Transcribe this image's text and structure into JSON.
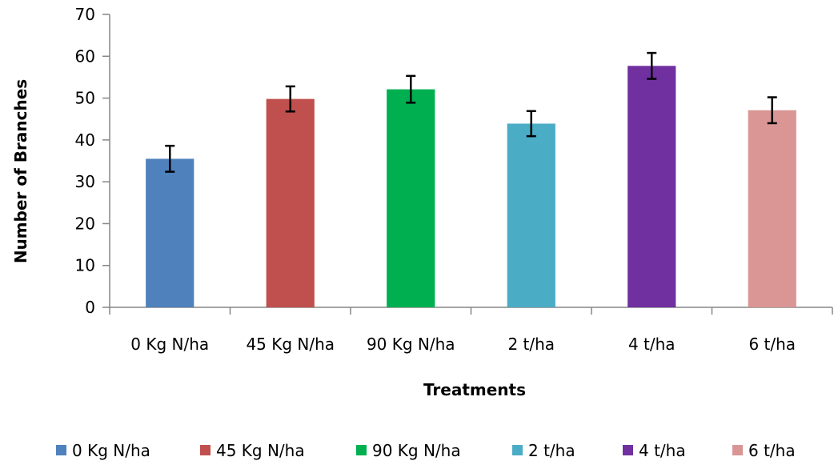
{
  "chart_data": {
    "type": "bar",
    "title": "",
    "xlabel": "Treatments",
    "ylabel": "Number of Branches",
    "ylim": [
      0,
      70
    ],
    "yticks": [
      0,
      10,
      20,
      30,
      40,
      50,
      60,
      70
    ],
    "grid": false,
    "legend_position": "bottom",
    "categories": [
      "0 Kg N/ha",
      "45 Kg N/ha",
      "90 Kg N/ha",
      "2 t/ha",
      "4 t/ha",
      "6 t/ha"
    ],
    "values": [
      35.5,
      49.8,
      52.1,
      43.9,
      57.7,
      47.1
    ],
    "error": [
      3.1,
      3.0,
      3.2,
      3.0,
      3.1,
      3.1
    ],
    "colors": [
      "#4F81BD",
      "#C0504D",
      "#00B050",
      "#4BACC6",
      "#7030A0",
      "#D99694"
    ],
    "legend": [
      "0 Kg N/ha",
      "45 Kg N/ha",
      "90 Kg N/ha",
      "2 t/ha",
      "4 t/ha",
      "6 t/ha"
    ]
  }
}
